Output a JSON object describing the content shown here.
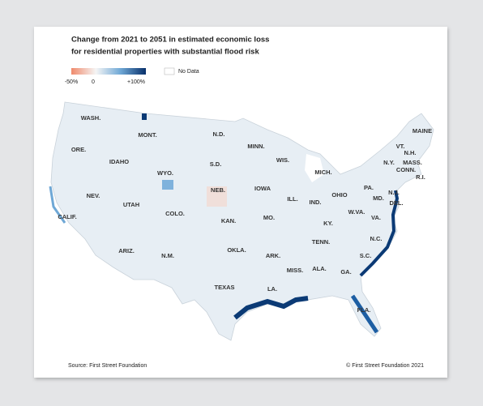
{
  "title": [
    "Change from 2021 to 2051 in estimated economic loss",
    "for residential properties with substantial flood risk"
  ],
  "legend": {
    "min_label": "-50%",
    "zero_label": "0",
    "max_label": "+100%",
    "no_data_label": "No Data"
  },
  "states": [
    "WASH.",
    "MONT.",
    "N.D.",
    "MINN.",
    "WIS.",
    "MICH.",
    "ORE.",
    "IDAHO",
    "WYO.",
    "S.D.",
    "IOWA",
    "NEB.",
    "ILL.",
    "IND.",
    "OHIO",
    "PA.",
    "N.Y.",
    "VT.",
    "N.H.",
    "MAINE",
    "MASS.",
    "CONN.",
    "R.I.",
    "N.J.",
    "MD.",
    "DEL.",
    "NEV.",
    "UTAH",
    "COLO.",
    "KAN.",
    "MO.",
    "KY.",
    "W.VA.",
    "VA.",
    "CALIF.",
    "ARIZ.",
    "N.M.",
    "OKLA.",
    "ARK.",
    "TENN.",
    "N.C.",
    "S.C.",
    "MISS.",
    "ALA.",
    "GA.",
    "TEXAS",
    "LA.",
    "FLA."
  ],
  "source": "Source: First Street Foundation",
  "copyright": "© First Street Foundation 2021"
}
